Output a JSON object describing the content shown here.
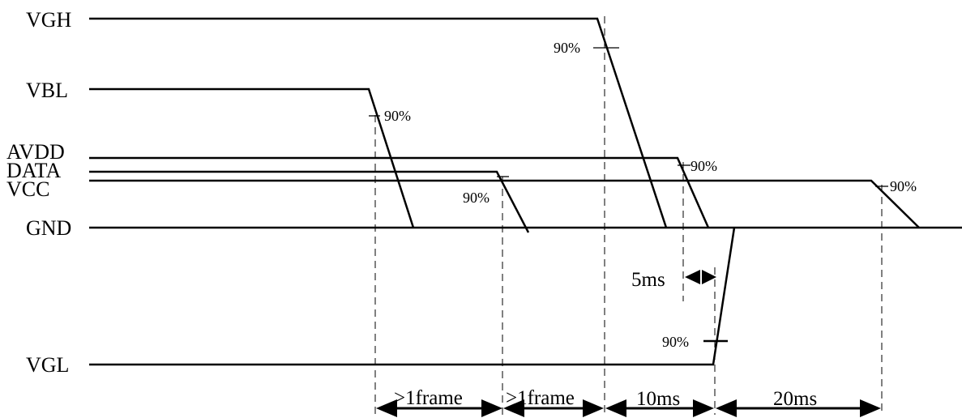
{
  "signals": {
    "vgh": "VGH",
    "vbl": "VBL",
    "avdd": "AVDD",
    "data": "DATA",
    "vcc": "VCC",
    "gnd": "GND",
    "vgl": "VGL"
  },
  "markers": {
    "vgh_90": "90%",
    "vbl_90": "90%",
    "data_90": "90%",
    "avdd_90": "90%",
    "vcc_90": "90%",
    "vgl_90": "90%"
  },
  "intervals": {
    "frame1": ">1frame",
    "frame2": ">1frame",
    "t10": "10ms",
    "t20": "20ms",
    "t5": "5ms"
  }
}
